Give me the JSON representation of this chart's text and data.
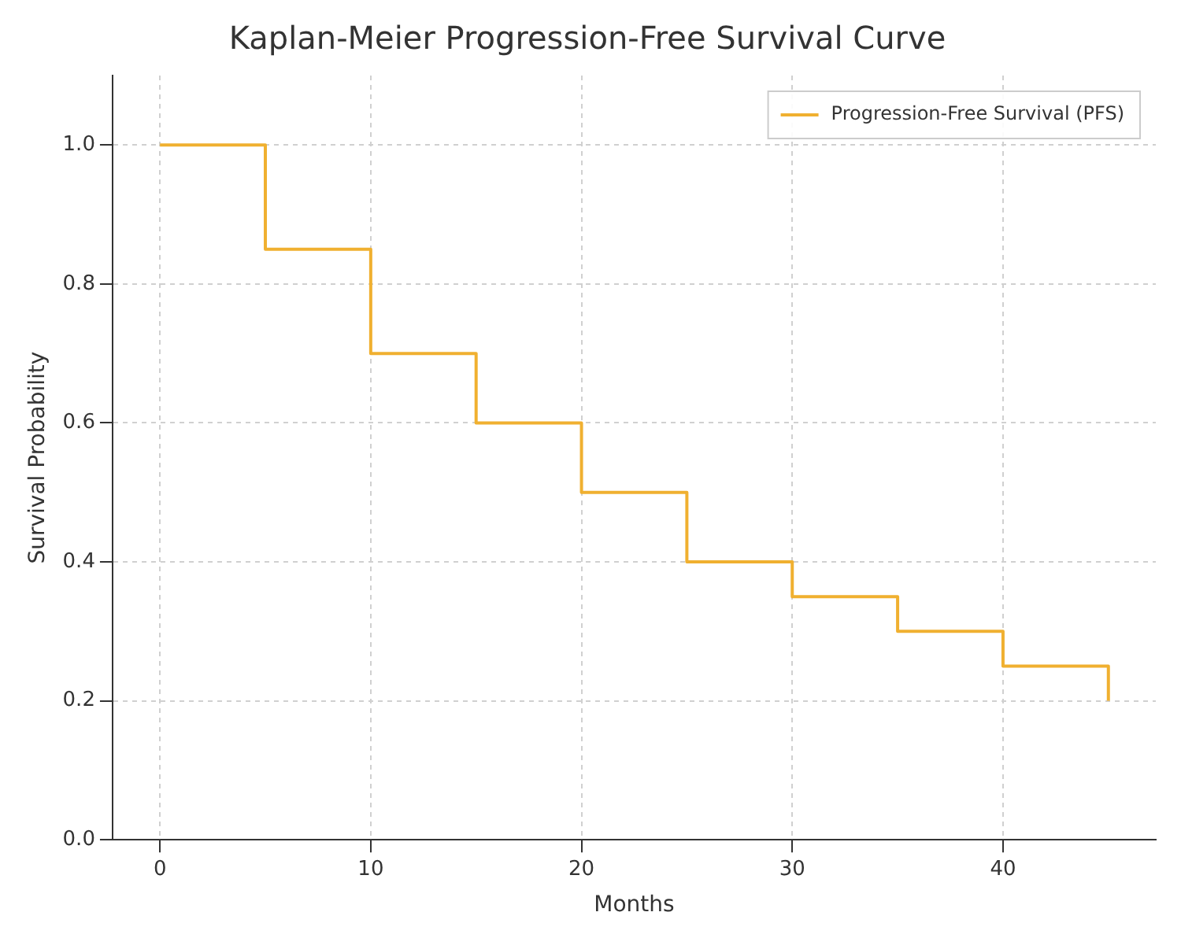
{
  "chart_data": {
    "type": "step",
    "title": "Kaplan-Meier Progression-Free Survival Curve",
    "xlabel": "Months",
    "ylabel": "Survival Probability",
    "x": [
      0,
      5,
      10,
      15,
      20,
      25,
      30,
      35,
      40,
      45
    ],
    "series": [
      {
        "name": "Progression-Free Survival (PFS)",
        "color": "#f0b030",
        "values": [
          1.0,
          0.85,
          0.7,
          0.6,
          0.5,
          0.4,
          0.35,
          0.3,
          0.25,
          0.2
        ]
      }
    ],
    "xlim": [
      -2.25,
      47.25
    ],
    "xticks": [
      0,
      10,
      20,
      30,
      40
    ],
    "ylim": [
      0,
      1.1
    ],
    "yticks": [
      {
        "value": 0,
        "label": "0.0"
      },
      0.2,
      0.4,
      0.6,
      0.8,
      {
        "value": 1,
        "label": "1.0"
      }
    ],
    "grid": true,
    "legend": "top right",
    "marker": "none",
    "line_style": "solid"
  }
}
